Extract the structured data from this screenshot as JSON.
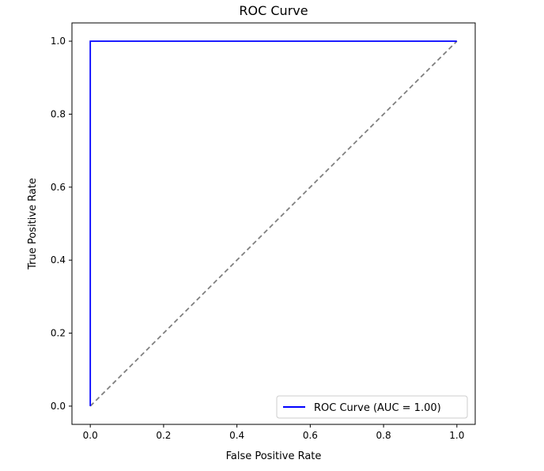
{
  "chart_data": {
    "type": "line",
    "title": "ROC Curve",
    "xlabel": "False Positive Rate",
    "ylabel": "True Positive Rate",
    "xlim": [
      -0.05,
      1.05
    ],
    "ylim": [
      -0.05,
      1.05
    ],
    "xticks": [
      0.0,
      0.2,
      0.4,
      0.6,
      0.8,
      1.0
    ],
    "yticks": [
      0.0,
      0.2,
      0.4,
      0.6,
      0.8,
      1.0
    ],
    "xtick_labels": [
      "0.0",
      "0.2",
      "0.4",
      "0.6",
      "0.8",
      "1.0"
    ],
    "ytick_labels": [
      "0.0",
      "0.2",
      "0.4",
      "0.6",
      "0.8",
      "1.0"
    ],
    "grid": false,
    "legend_position": "lower-right",
    "series": [
      {
        "name": "ROC Curve (AUC = 1.00)",
        "color": "#0000ff",
        "style": "solid",
        "x": [
          0.0,
          0.0,
          1.0
        ],
        "y": [
          0.0,
          1.0,
          1.0
        ]
      },
      {
        "color": "#808080",
        "style": "dashed",
        "x": [
          0.0,
          1.0
        ],
        "y": [
          0.0,
          1.0
        ]
      }
    ]
  }
}
